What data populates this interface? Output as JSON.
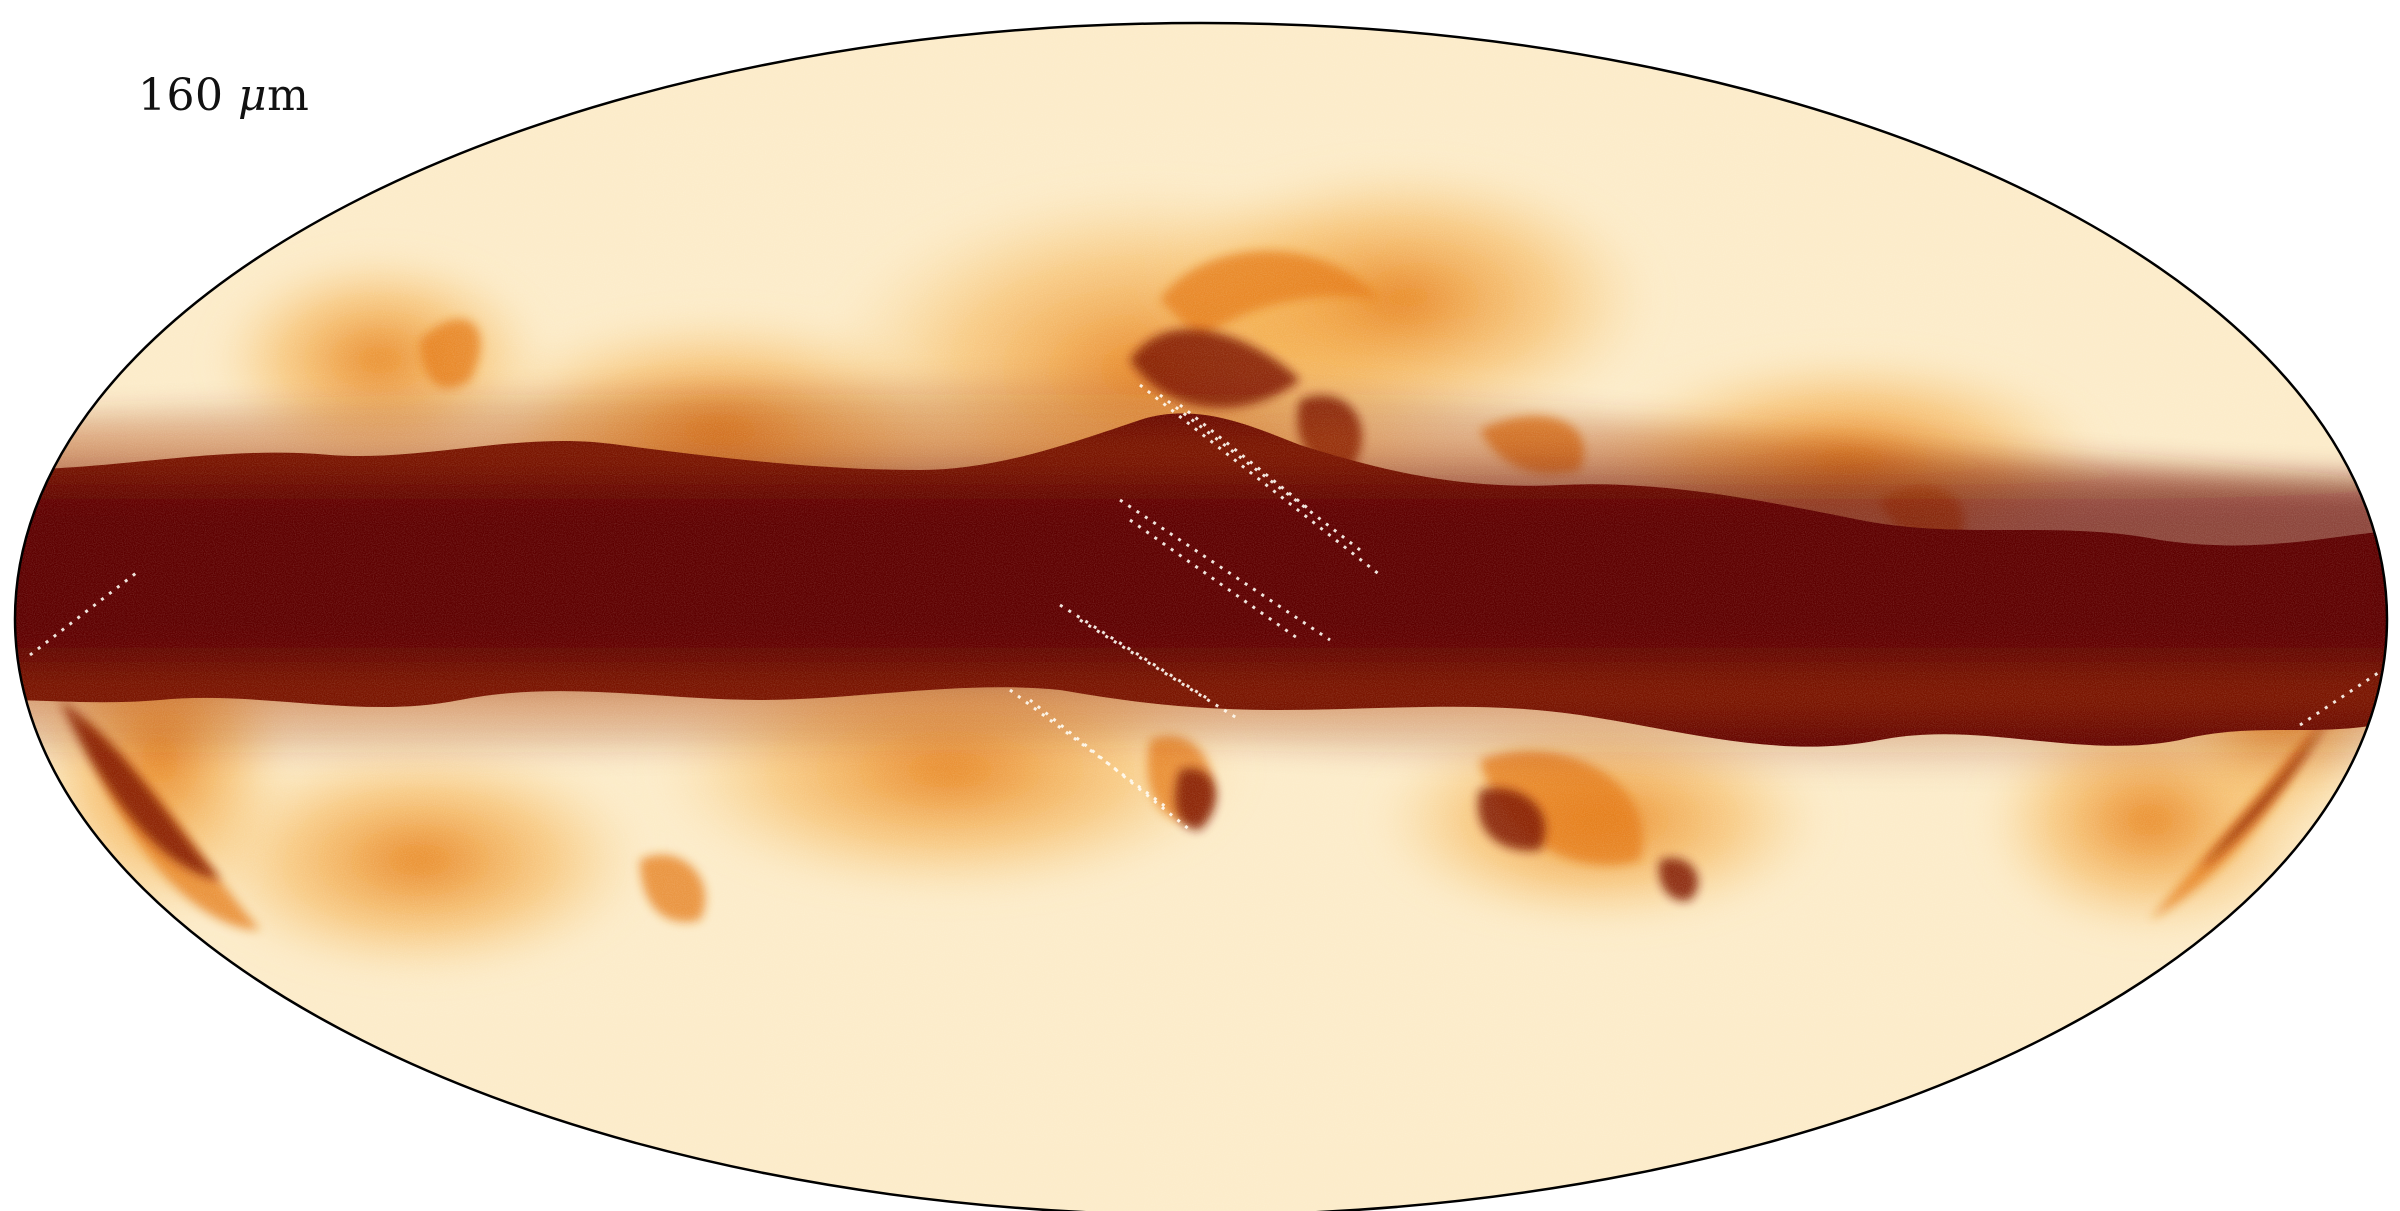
{
  "map": {
    "label_value": "160",
    "label_mu": "μ",
    "label_unit": "m",
    "projection": "mollweide",
    "colormap": [
      "#fffdf5",
      "#fbe3b2",
      "#f8cd80",
      "#f4a83c",
      "#e57a12",
      "#b33f06",
      "#7f1503",
      "#5e0000"
    ],
    "outline_color": "#000000",
    "background_color": "#ffffff"
  }
}
